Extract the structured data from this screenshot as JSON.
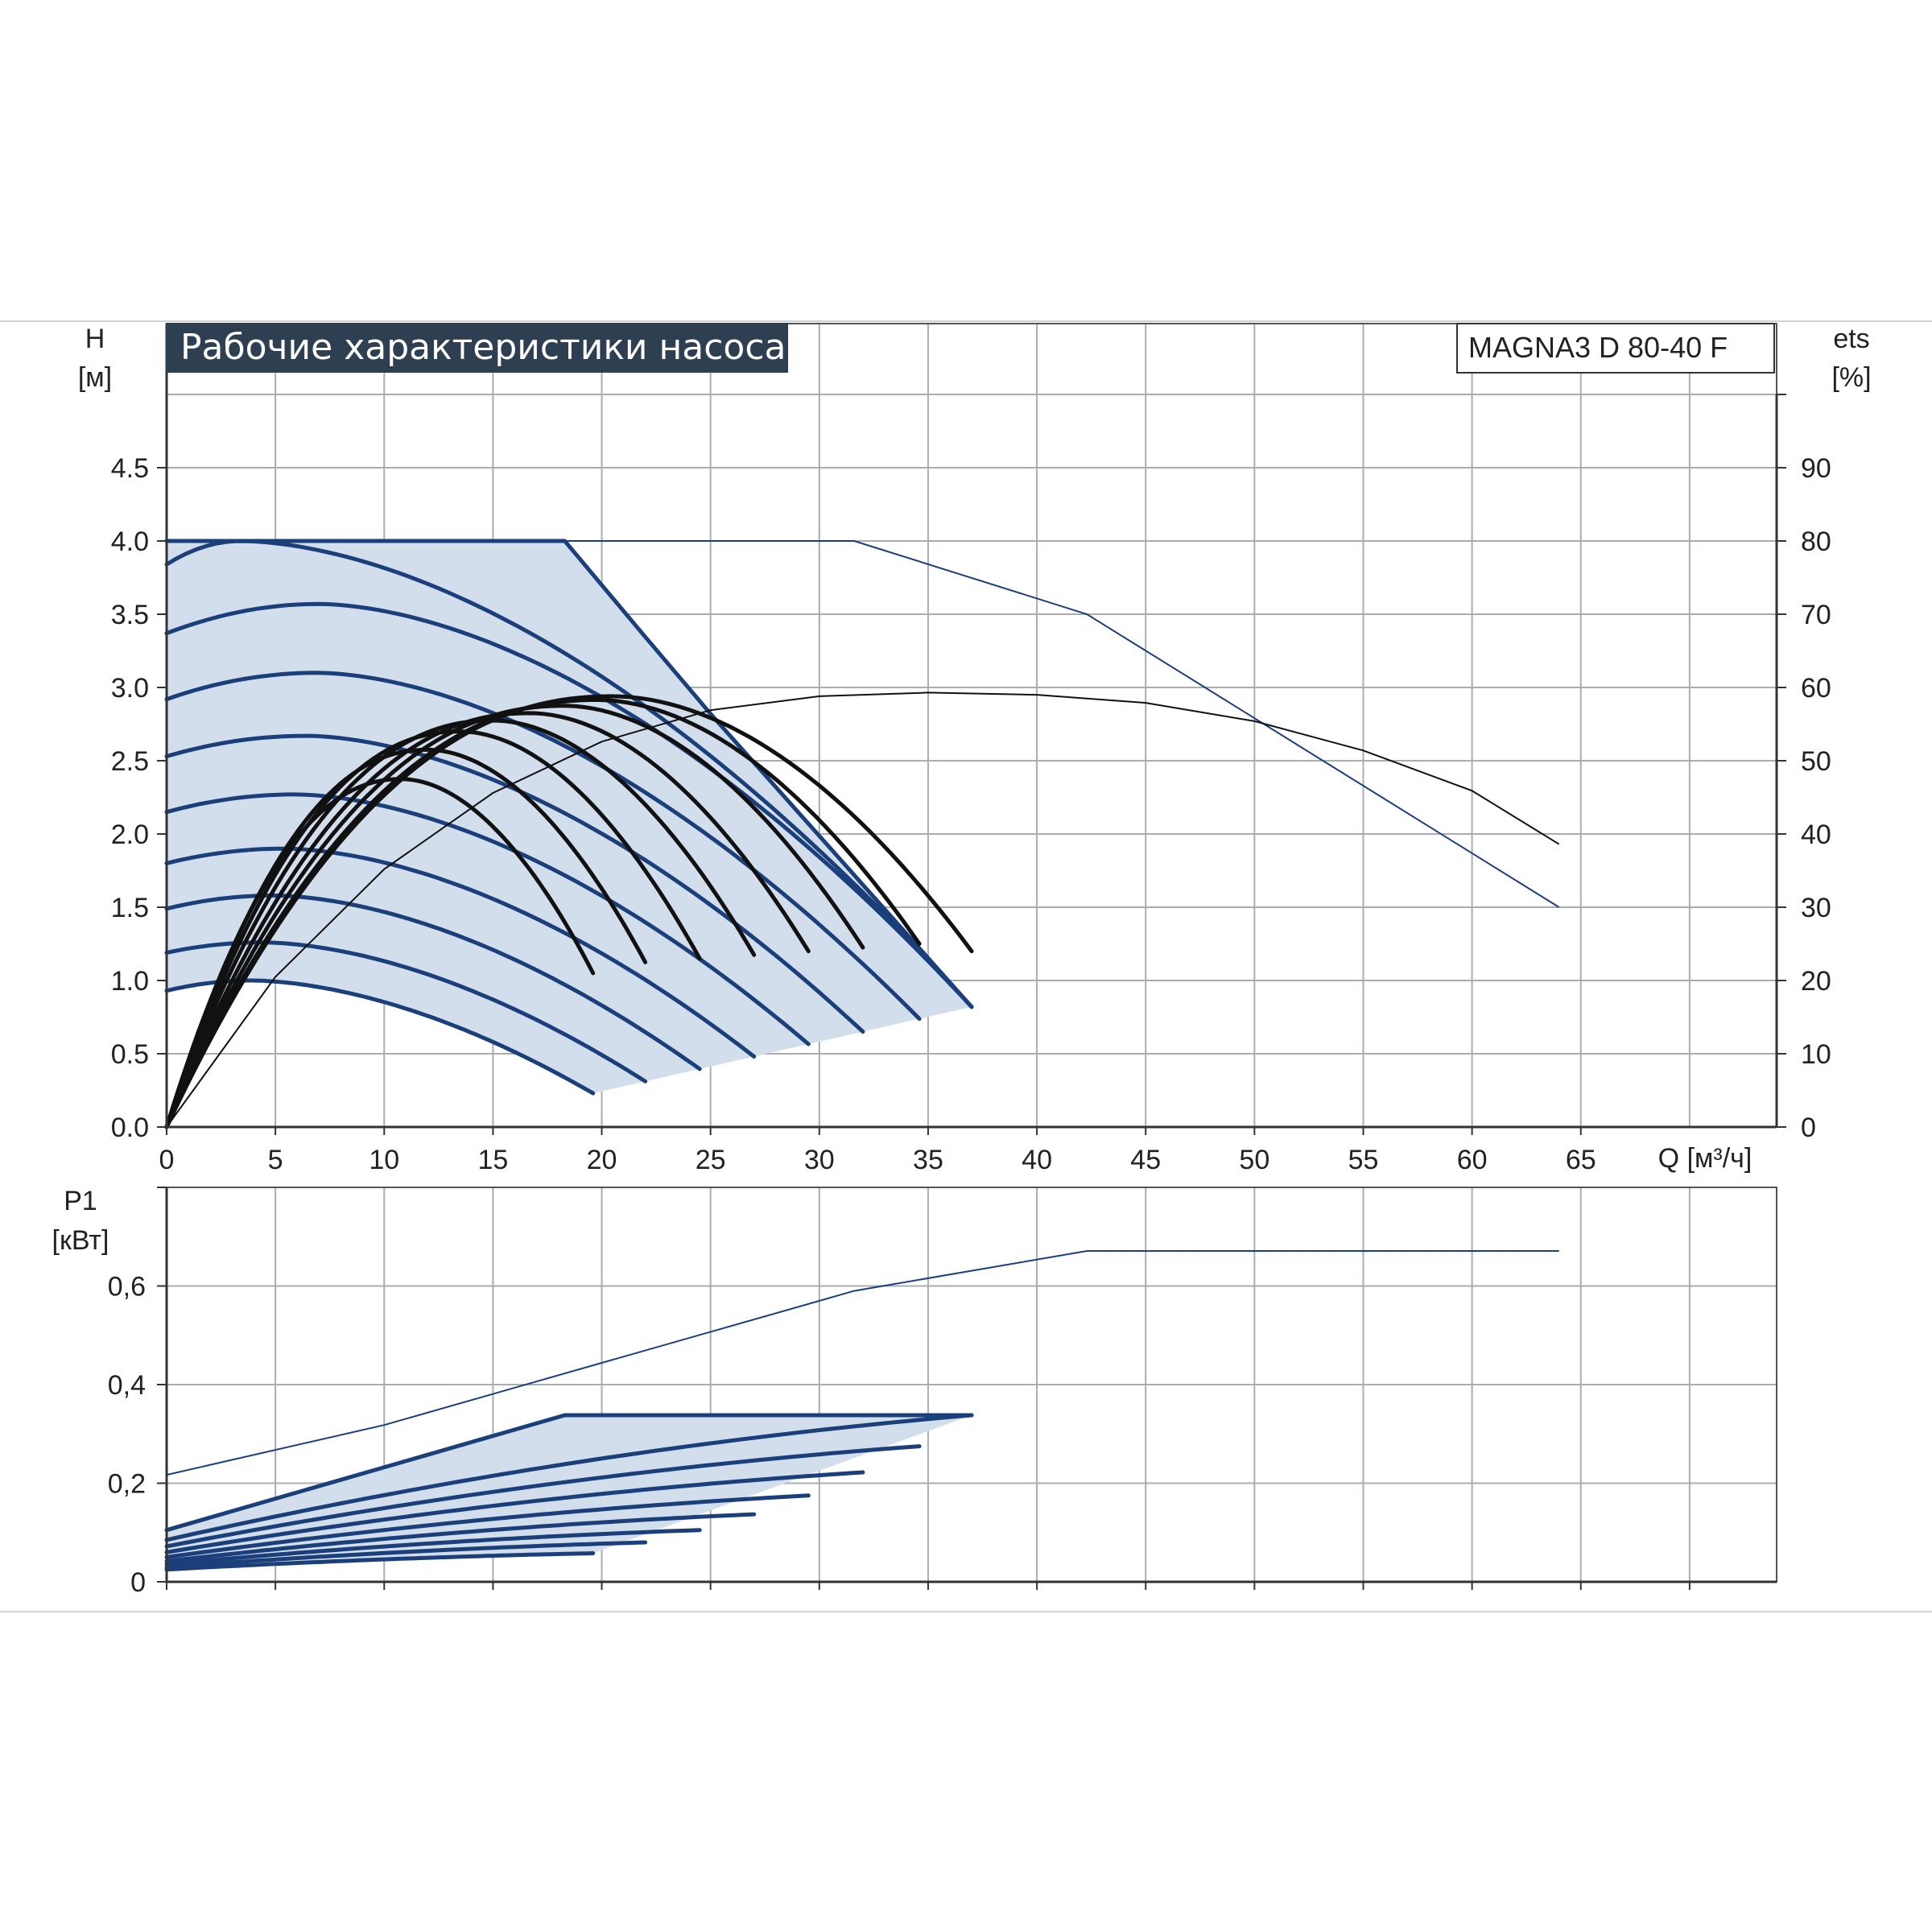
{
  "title": "Рабочие характеристики насоса",
  "model_label": "MAGNA3 D 80-40 F",
  "colors": {
    "title_bg": "#2e3f52",
    "title_text": "#ffffff",
    "curve": "#1b3f7a",
    "fill": "#d3deec",
    "efficiency": "#111111",
    "grid": "#a9adb3"
  },
  "chart_data": [
    {
      "type": "line",
      "name": "head",
      "ylabel_line1": "H",
      "ylabel_line2": "[м]",
      "y2label_line1": "ets",
      "y2label_line2": "[%]",
      "xlabel": "Q [м³/ч]",
      "xlim": [
        0,
        74
      ],
      "ylim": [
        0,
        5
      ],
      "y2lim": [
        0,
        100
      ],
      "x_ticks": [
        "0",
        "5",
        "10",
        "15",
        "20",
        "25",
        "30",
        "35",
        "40",
        "45",
        "50",
        "55",
        "60",
        "65"
      ],
      "y_ticks": [
        "0.0",
        "0.5",
        "1.0",
        "1.5",
        "2.0",
        "2.5",
        "3.0",
        "3.5",
        "4.0",
        "4.5"
      ],
      "y2_ticks": [
        "0",
        "10",
        "20",
        "30",
        "40",
        "50",
        "60",
        "70",
        "80",
        "90"
      ],
      "grid": true,
      "envelope": {
        "x": [
          0,
          18.3,
          21.8,
          25.0,
          37.0
        ],
        "y": [
          4.0,
          4.0,
          3.38,
          2.82,
          0.82
        ]
      },
      "speed_curves": [
        {
          "h0": 0.93,
          "hmax": 1.0,
          "qmax": 3.9,
          "qend": 19.6
        },
        {
          "h0": 1.19,
          "hmax": 1.26,
          "qmax": 4.4,
          "qend": 22.0
        },
        {
          "h0": 1.49,
          "hmax": 1.58,
          "qmax": 4.9,
          "qend": 24.5
        },
        {
          "h0": 1.8,
          "hmax": 1.9,
          "qmax": 5.4,
          "qend": 27.0
        },
        {
          "h0": 2.15,
          "hmax": 2.27,
          "qmax": 5.9,
          "qend": 29.5
        },
        {
          "h0": 2.53,
          "hmax": 2.67,
          "qmax": 6.4,
          "qend": 32.0
        },
        {
          "h0": 2.92,
          "hmax": 3.1,
          "qmax": 6.9,
          "qend": 34.6
        },
        {
          "h0": 3.37,
          "hmax": 3.57,
          "qmax": 7.0,
          "qend": 37.0
        },
        {
          "h0": 3.84,
          "hmax": 4.0,
          "qmax": 3.4,
          "qend": 37.0
        }
      ],
      "max_head_curve": {
        "x": [
          0,
          31.6,
          42.3,
          64.0
        ],
        "y": [
          4.0,
          4.0,
          3.5,
          1.5
        ]
      },
      "efficiency_max_curve": {
        "x": [
          0,
          5,
          10,
          15,
          20,
          25,
          30,
          35,
          40,
          45,
          50,
          55,
          60,
          64
        ],
        "y": [
          0,
          20.5,
          35.2,
          45.6,
          52.6,
          56.9,
          58.8,
          59.3,
          59.0,
          57.9,
          55.4,
          51.4,
          45.9,
          38.6
        ]
      },
      "efficiency_curves": [
        {
          "peak_q": 10.8,
          "peak_e": 47.5,
          "end_q": 19.6,
          "end_e": 21.0
        },
        {
          "peak_q": 12.0,
          "peak_e": 51.5,
          "end_q": 22.0,
          "end_e": 22.5
        },
        {
          "peak_q": 13.5,
          "peak_e": 54.0,
          "end_q": 24.5,
          "end_e": 23.0
        },
        {
          "peak_q": 15.0,
          "peak_e": 55.5,
          "end_q": 27.0,
          "end_e": 23.5
        },
        {
          "peak_q": 16.7,
          "peak_e": 56.5,
          "end_q": 29.5,
          "end_e": 24.0
        },
        {
          "peak_q": 18.3,
          "peak_e": 57.5,
          "end_q": 32.0,
          "end_e": 24.5
        },
        {
          "peak_q": 19.8,
          "peak_e": 58.3,
          "end_q": 34.6,
          "end_e": 25.0
        },
        {
          "peak_q": 20.5,
          "peak_e": 58.8,
          "end_q": 37.0,
          "end_e": 24.0
        }
      ]
    },
    {
      "type": "line",
      "name": "power",
      "ylabel_line1": "P1",
      "ylabel_line2": "[кВт]",
      "xlim": [
        0,
        74
      ],
      "ylim": [
        0,
        0.8
      ],
      "y_ticks": [
        "0",
        "0,2",
        "0,4",
        "0,6"
      ],
      "grid": true,
      "power_max_curve": {
        "x": [
          0,
          10,
          20,
          31.6,
          42.3,
          64.0
        ],
        "y": [
          0.217,
          0.318,
          0.444,
          0.59,
          0.671,
          0.671
        ]
      },
      "power_envelope": {
        "x": [
          0,
          18.3,
          21.8,
          37.0
        ],
        "y": [
          0.105,
          0.338,
          0.338,
          0.338
        ]
      },
      "power_curves": [
        {
          "p0": 0.025,
          "pend": 0.058,
          "qend": 19.6
        },
        {
          "p0": 0.03,
          "pend": 0.08,
          "qend": 22.0
        },
        {
          "p0": 0.036,
          "pend": 0.105,
          "qend": 24.5
        },
        {
          "p0": 0.042,
          "pend": 0.137,
          "qend": 27.0
        },
        {
          "p0": 0.05,
          "pend": 0.175,
          "qend": 29.5
        },
        {
          "p0": 0.06,
          "pend": 0.222,
          "qend": 32.0
        },
        {
          "p0": 0.072,
          "pend": 0.275,
          "qend": 34.6
        },
        {
          "p0": 0.085,
          "pend": 0.338,
          "qend": 37.0
        }
      ]
    }
  ]
}
